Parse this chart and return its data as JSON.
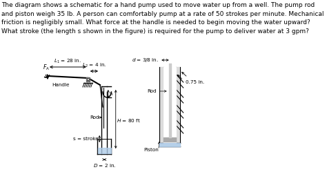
{
  "text_block": "The diagram shows a schematic for a hand pump used to move water up from a well. The pump rod\nand piston weigh 35 lb. A person can comfortably pump at a rate of 50 strokes per minute. Mechanical\nfriction is negligibly small. What force at the handle is needed to begin moving the water upward?\nWhat stroke (the length s shown in the figure) is required for the pump to deliver water at 3 gpm?",
  "bg_color": "#ffffff",
  "line_color": "#000000",
  "text_fontsize": 6.5,
  "label_fontsize": 5.2,
  "water_color": "#b0cce8"
}
